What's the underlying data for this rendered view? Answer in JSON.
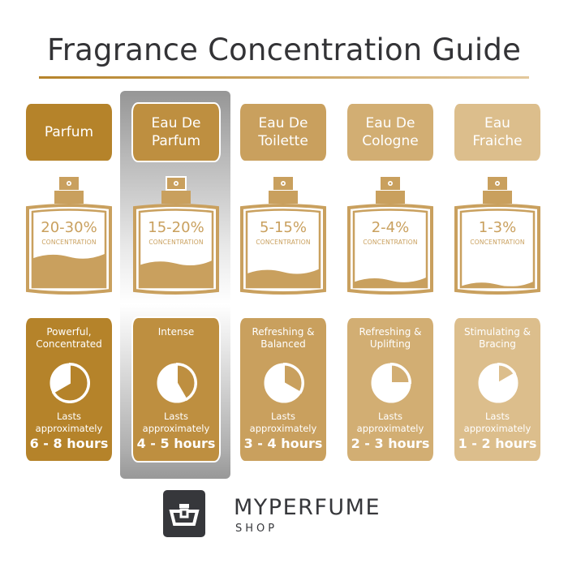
{
  "title": "Fragrance Concentration Guide",
  "colors": {
    "accent": "#b5832a",
    "dark": "#36373b",
    "highlight": "#9a9a9a"
  },
  "concentration_label": "CONCENTRATION",
  "lasts_label": [
    "Lasts",
    "approximately"
  ],
  "columns": [
    {
      "name": [
        "",
        "Parfum"
      ],
      "concentration": "20-30%",
      "fill_level": 0.38,
      "description": [
        "Powerful,",
        "Concentrated"
      ],
      "duration": "6 - 8 hours",
      "max_hours": 8,
      "color": "#b5832a",
      "highlighted": false
    },
    {
      "name": [
        "Eau De",
        "Parfum"
      ],
      "concentration": "15-20%",
      "fill_level": 0.3,
      "description": [
        "",
        "Intense"
      ],
      "duration": "4 - 5 hours",
      "max_hours": 5,
      "color": "#be8f40",
      "highlighted": true
    },
    {
      "name": [
        "Eau De",
        "Toilette"
      ],
      "concentration": "5-15%",
      "fill_level": 0.2,
      "description": [
        "Refreshing &",
        "Balanced"
      ],
      "duration": "3 - 4 hours",
      "max_hours": 4,
      "color": "#c9a05e",
      "highlighted": false
    },
    {
      "name": [
        "Eau De",
        "Cologne"
      ],
      "concentration": "2-4%",
      "fill_level": 0.1,
      "description": [
        "Refreshing &",
        "Uplifting"
      ],
      "duration": "2 - 3 hours",
      "max_hours": 3,
      "color": "#d2ae73",
      "highlighted": false
    },
    {
      "name": [
        "Eau",
        "Fraiche"
      ],
      "concentration": "1-3%",
      "fill_level": 0.05,
      "description": [
        "Stimulating &",
        "Bracing"
      ],
      "duration": "1 - 2 hours",
      "max_hours": 2,
      "color": "#dcbe8c",
      "highlighted": false
    }
  ],
  "brand": {
    "name": "MYPERFUME",
    "sub": "SHOP"
  }
}
